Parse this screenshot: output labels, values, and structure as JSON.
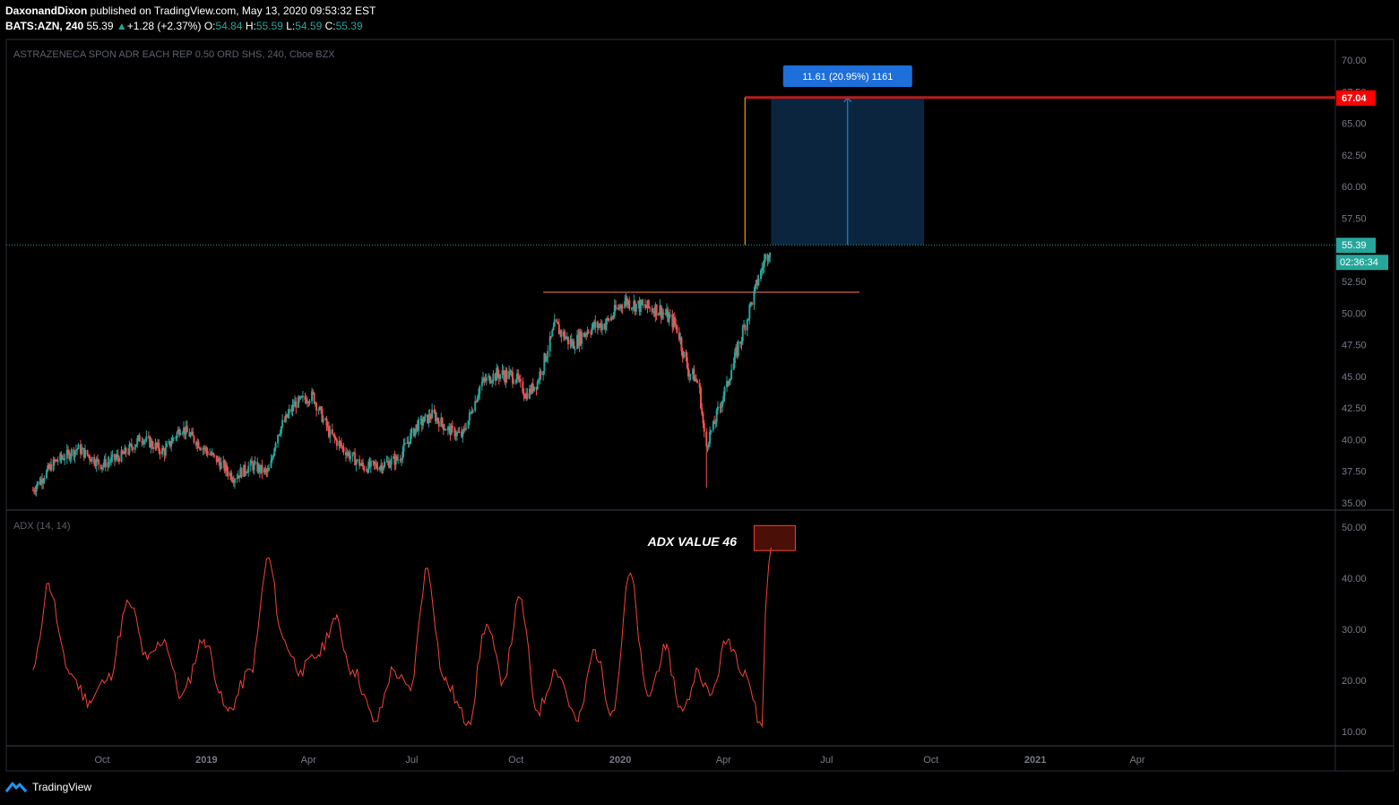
{
  "header": {
    "author": "DaxonandDixon",
    "published_text": " published on TradingView.com, May 13, 2020 09:53:32 EST",
    "symbol": "BATS:AZN, 240",
    "last": "55.39",
    "change": "+1.28 (+2.37%)",
    "o_label": "O:",
    "o_value": "54.84",
    "h_label": "H:",
    "h_value": "55.59",
    "l_label": "L:",
    "l_value": "54.59",
    "c_label": "C:",
    "c_value": "55.39"
  },
  "price_pane": {
    "title": "ASTRAZENECA SPON ADR EACH REP 0.50 ORD SHS, 240, Cboe BZX",
    "y_ticks": [
      "70.00",
      "67.50",
      "65.00",
      "62.50",
      "60.00",
      "57.50",
      "55.00",
      "52.50",
      "50.00",
      "47.50",
      "45.00",
      "42.50",
      "40.00",
      "37.50",
      "35.00"
    ],
    "current_price_label": "55.39",
    "countdown_label": "02:36:34",
    "target_price_label": "67.04",
    "projection_label": "11.61 (20.95%) 1161"
  },
  "adx_pane": {
    "title": "ADX (14, 14)",
    "annotation": "ADX VALUE 46",
    "y_ticks": [
      "50.00",
      "40.00",
      "30.00",
      "20.00",
      "10.00"
    ]
  },
  "x_ticks": [
    "Oct",
    "2019",
    "Apr",
    "Jul",
    "Oct",
    "2020",
    "Apr",
    "Jul",
    "Oct",
    "2021",
    "Apr"
  ],
  "colors": {
    "up": "#26a69a",
    "down": "#ef5350",
    "adx": "#f44336",
    "target": "#ff0000",
    "projection": "#2196f3",
    "resistance": "#ff7f50",
    "vertical_line": "#ff9800"
  },
  "footer": {
    "brand": "TradingView"
  },
  "chart_data": [
    {
      "type": "line",
      "title": "ASTRAZENECA SPON ADR EACH REP 0.50 ORD SHS, 240, Cboe BZX",
      "interval": "240",
      "x_range": [
        "2018-08-01",
        "2021-05-20"
      ],
      "ylim": [
        34.5,
        71
      ],
      "series": [
        {
          "x": [
            "2018-08-01",
            "2018-08-20",
            "2018-09-10",
            "2018-10-01",
            "2018-10-20",
            "2018-11-05",
            "2018-11-25",
            "2018-12-10",
            "2018-12-28",
            "2019-01-15",
            "2019-01-25",
            "2019-02-10",
            "2019-02-25",
            "2019-03-05",
            "2019-03-20",
            "2019-04-05",
            "2019-04-20",
            "2019-05-05",
            "2019-05-20",
            "2019-06-05",
            "2019-06-20",
            "2019-07-05",
            "2019-07-20",
            "2019-08-02",
            "2019-08-15",
            "2019-09-01",
            "2019-09-15",
            "2019-10-01",
            "2019-10-10",
            "2019-10-20",
            "2019-11-05",
            "2019-11-20",
            "2019-12-05",
            "2019-12-20",
            "2020-01-05",
            "2020-01-20",
            "2020-02-05",
            "2020-02-20",
            "2020-03-01",
            "2020-03-10",
            "2020-03-17",
            "2020-03-25",
            "2020-04-05",
            "2020-04-15",
            "2020-04-25",
            "2020-05-05",
            "2020-05-13"
          ],
          "values": [
            36.0,
            38.2,
            39.3,
            38.0,
            38.8,
            40.2,
            39.0,
            41.0,
            39.5,
            38.0,
            37.0,
            38.0,
            37.3,
            40.5,
            42.8,
            43.5,
            40.5,
            39.0,
            37.8,
            38.0,
            38.5,
            41.0,
            42.0,
            40.8,
            40.3,
            44.5,
            45.2,
            45.0,
            43.5,
            44.5,
            49.0,
            47.5,
            48.8,
            49.2,
            51.0,
            50.5,
            50.3,
            49.0,
            45.5,
            44.5,
            39.5,
            41.5,
            44.5,
            47.5,
            50.5,
            53.5,
            55.39
          ]
        }
      ],
      "annotations": {
        "resistance": 51.65,
        "target_price": 67.04,
        "entry_price": 55.39,
        "projection": "11.61 (20.95%) 1161"
      }
    },
    {
      "type": "line",
      "title": "ADX (14, 14)",
      "ylim": [
        8,
        52
      ],
      "series": [
        {
          "name": "ADX",
          "x": [
            "2018-08-01",
            "2018-08-15",
            "2018-09-01",
            "2018-09-20",
            "2018-10-05",
            "2018-10-25",
            "2018-11-10",
            "2018-11-25",
            "2018-12-10",
            "2018-12-30",
            "2019-01-20",
            "2019-02-10",
            "2019-02-25",
            "2019-03-10",
            "2019-03-25",
            "2019-04-10",
            "2019-04-25",
            "2019-05-10",
            "2019-05-30",
            "2019-06-15",
            "2019-06-30",
            "2019-07-15",
            "2019-07-30",
            "2019-08-20",
            "2019-09-05",
            "2019-09-20",
            "2019-10-05",
            "2019-10-20",
            "2019-11-05",
            "2019-11-25",
            "2019-12-10",
            "2019-12-25",
            "2020-01-10",
            "2020-01-25",
            "2020-02-10",
            "2020-02-25",
            "2020-03-10",
            "2020-03-20",
            "2020-04-05",
            "2020-04-20",
            "2020-05-05",
            "2020-05-10",
            "2020-05-13"
          ],
          "values": [
            22,
            39,
            22,
            16,
            20,
            35,
            24,
            28,
            17,
            28,
            14,
            22,
            44,
            28,
            22,
            25,
            32,
            22,
            12,
            22,
            18,
            42,
            20,
            12,
            31,
            20,
            36,
            14,
            22,
            12,
            26,
            14,
            41,
            17,
            26,
            14,
            22,
            17,
            28,
            22,
            11,
            40,
            46
          ]
        }
      ],
      "annotations": {
        "label": "ADX VALUE 46"
      }
    }
  ]
}
